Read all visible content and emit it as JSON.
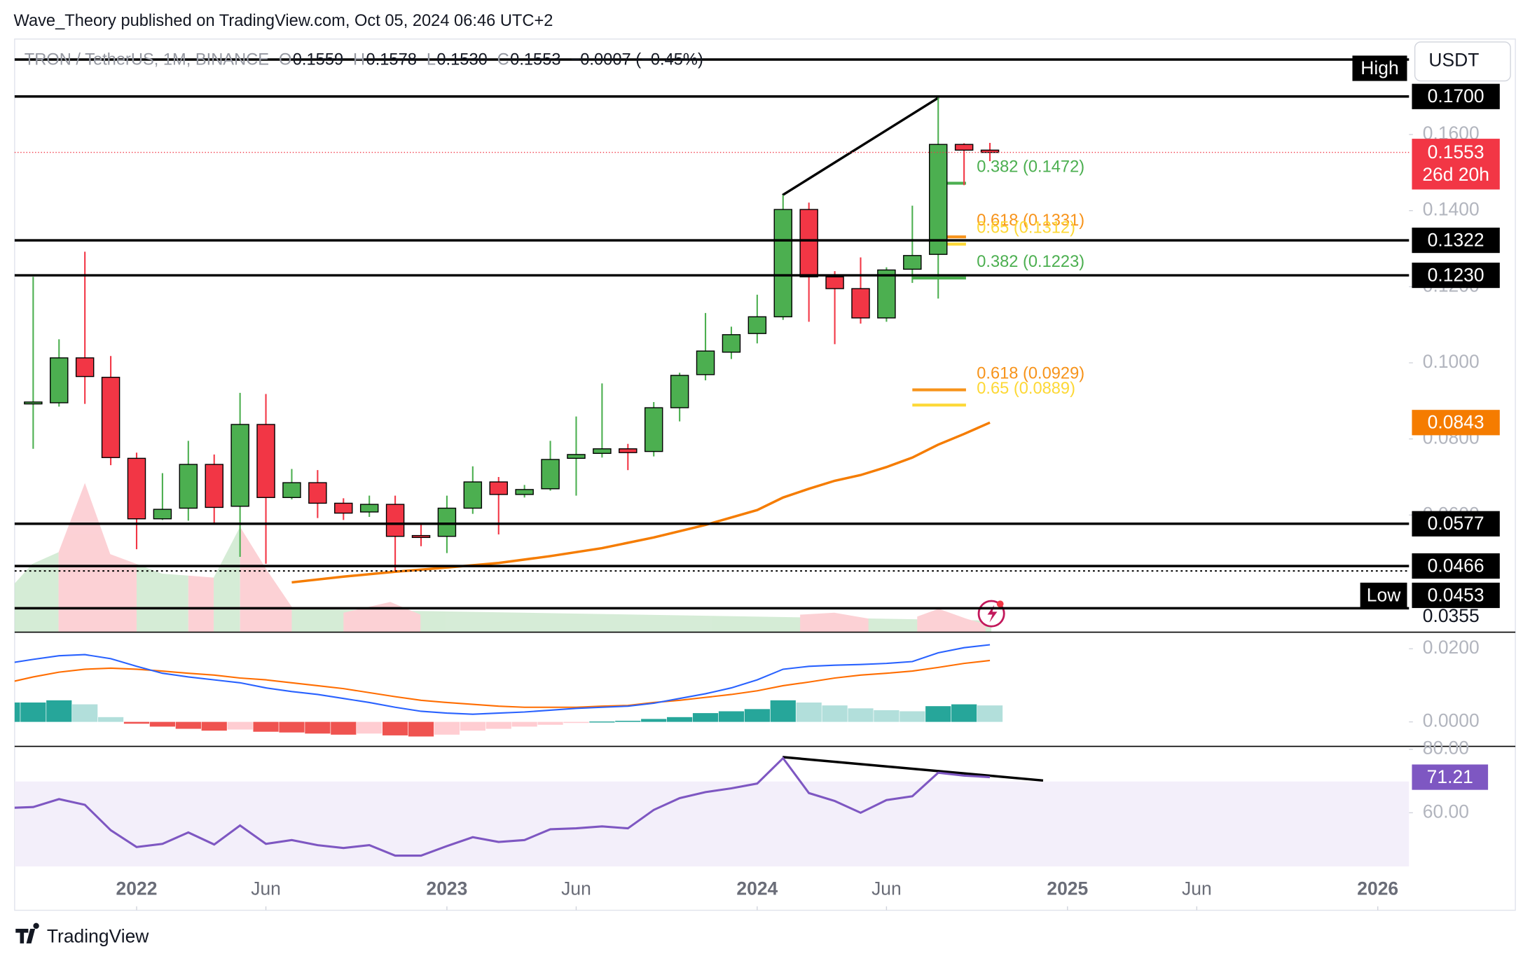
{
  "header": {
    "publisher": "Wave_Theory published on TradingView.com, Oct 05, 2024 06:46 UTC+2"
  },
  "footer": {
    "brand": "TradingView"
  },
  "chart_data": {
    "type": "candlestick",
    "symbol": "TRON / TetherUS, 1M, BINANCE",
    "legend": [
      {
        "key": "O",
        "value": "0.1559"
      },
      {
        "key": "H",
        "value": "0.1578"
      },
      {
        "key": "L",
        "value": "0.1530"
      },
      {
        "key": "C",
        "value": "0.1553"
      }
    ],
    "change": "−0.0007 (−0.45%)",
    "currency": "USDT",
    "up_color": "#4caf50",
    "down_color": "#f23645",
    "xlim": [
      "2021-08",
      "2026-02"
    ],
    "xticks": [
      {
        "value": "2022-01",
        "label": "2022"
      },
      {
        "value": "2022-06",
        "label": "Jun"
      },
      {
        "value": "2023-01",
        "label": "2023"
      },
      {
        "value": "2023-06",
        "label": "Jun"
      },
      {
        "value": "2024-01",
        "label": "2024"
      },
      {
        "value": "2024-06",
        "label": "Jun"
      },
      {
        "value": "2025-01",
        "label": "2025"
      },
      {
        "value": "2025-06",
        "label": "Jun"
      },
      {
        "value": "2026-01",
        "label": "2026"
      }
    ],
    "ylim": [
      0.0292,
      0.1851
    ],
    "yticks": [
      {
        "value": 0.16,
        "label": "0.1600"
      },
      {
        "value": 0.14,
        "label": "0.1400"
      },
      {
        "value": 0.12,
        "label": "0.1200"
      },
      {
        "value": 0.1,
        "label": "0.1000"
      },
      {
        "value": 0.08,
        "label": "0.0800"
      },
      {
        "value": 0.06,
        "label": "0.0600"
      }
    ],
    "x": [
      "2021-09",
      "2021-10",
      "2021-11",
      "2021-12",
      "2022-01",
      "2022-02",
      "2022-03",
      "2022-04",
      "2022-05",
      "2022-06",
      "2022-07",
      "2022-08",
      "2022-09",
      "2022-10",
      "2022-11",
      "2022-12",
      "2023-01",
      "2023-02",
      "2023-03",
      "2023-04",
      "2023-05",
      "2023-06",
      "2023-07",
      "2023-08",
      "2023-09",
      "2023-10",
      "2023-11",
      "2023-12",
      "2024-01",
      "2024-02",
      "2024-03",
      "2024-04",
      "2024-05",
      "2024-06",
      "2024-07",
      "2024-08",
      "2024-09",
      "2024-10"
    ],
    "open": [
      0.0892,
      0.0895,
      0.1013,
      0.0962,
      0.0749,
      0.059,
      0.0618,
      0.0733,
      0.0623,
      0.0838,
      0.0646,
      0.0685,
      0.0631,
      0.0608,
      0.0628,
      0.0546,
      0.0544,
      0.0618,
      0.0687,
      0.0654,
      0.0669,
      0.0749,
      0.0762,
      0.0774,
      0.0767,
      0.0882,
      0.0969,
      0.1028,
      0.1077,
      0.1121,
      0.1403,
      0.1226,
      0.1195,
      0.1118,
      0.1246,
      0.1285,
      0.1574,
      0.1559
    ],
    "high": [
      0.1226,
      0.1062,
      0.1292,
      0.1018,
      0.0764,
      0.071,
      0.0795,
      0.0759,
      0.0921,
      0.0918,
      0.0721,
      0.0718,
      0.0644,
      0.0651,
      0.0651,
      0.0579,
      0.0651,
      0.0728,
      0.07,
      0.0679,
      0.0795,
      0.0859,
      0.0946,
      0.0787,
      0.0897,
      0.0974,
      0.1131,
      0.1095,
      0.1179,
      0.1441,
      0.1421,
      0.1241,
      0.1277,
      0.1251,
      0.1413,
      0.17,
      0.1577,
      0.1578
    ],
    "low": [
      0.0774,
      0.0885,
      0.0892,
      0.0731,
      0.051,
      0.0587,
      0.0585,
      0.0574,
      0.049,
      0.0472,
      0.0641,
      0.0592,
      0.0587,
      0.0595,
      0.0453,
      0.0518,
      0.05,
      0.0603,
      0.0549,
      0.0646,
      0.0664,
      0.0651,
      0.0751,
      0.0718,
      0.0754,
      0.0846,
      0.0954,
      0.101,
      0.1051,
      0.1113,
      0.1108,
      0.1049,
      0.1103,
      0.1108,
      0.121,
      0.1169,
      0.1467,
      0.153
    ],
    "close": [
      0.0897,
      0.1013,
      0.0964,
      0.0751,
      0.059,
      0.0615,
      0.0733,
      0.062,
      0.0838,
      0.0646,
      0.0685,
      0.0631,
      0.0605,
      0.0628,
      0.0544,
      0.0541,
      0.0618,
      0.0687,
      0.0654,
      0.0667,
      0.0746,
      0.0759,
      0.0774,
      0.0764,
      0.0882,
      0.0967,
      0.1031,
      0.1074,
      0.1121,
      0.1403,
      0.1226,
      0.1195,
      0.1118,
      0.1244,
      0.1282,
      0.1574,
      0.1559,
      0.1553
    ],
    "levels": [
      {
        "value": 0.17,
        "label": "0.1700"
      },
      {
        "value": 0.1322,
        "label": "0.1322"
      },
      {
        "value": 0.123,
        "label": "0.1230"
      },
      {
        "value": 0.0577,
        "label": "0.0577"
      },
      {
        "value": 0.0466,
        "label": "0.0466"
      }
    ],
    "high_tag": "High",
    "low_level": {
      "value": 0.0453,
      "label": "0.0453",
      "tag": "Low"
    },
    "bottom_level": {
      "value": 0.0355,
      "label": "0.0355"
    },
    "current_price": {
      "value": 0.1553,
      "countdown": "26d 20h"
    },
    "fib_levels": [
      {
        "value": 0.1472,
        "label": "0.382 (0.1472)",
        "color": "#4caf50"
      },
      {
        "value": 0.1331,
        "label": "0.618 (0.1331)",
        "color": "#f7931a"
      },
      {
        "value": 0.1312,
        "label": "0.65 (0.1312)",
        "color": "#fdd835"
      },
      {
        "value": 0.1223,
        "label": "0.382 (0.1223)",
        "color": "#4caf50"
      },
      {
        "value": 0.0929,
        "label": "0.618 (0.0929)",
        "color": "#f7931a"
      },
      {
        "value": 0.0889,
        "label": "0.65 (0.0889)",
        "color": "#fdd835"
      }
    ],
    "ema": {
      "color": "#f57c00",
      "x": [
        "2022-07",
        "2022-09",
        "2022-11",
        "2023-01",
        "2023-03",
        "2023-05",
        "2023-07",
        "2023-09",
        "2023-11",
        "2024-01",
        "2024-02",
        "2024-03",
        "2024-04",
        "2024-05",
        "2024-06",
        "2024-07",
        "2024-08",
        "2024-09",
        "2024-10"
      ],
      "values": [
        0.0423,
        0.0438,
        0.0451,
        0.0462,
        0.0474,
        0.0492,
        0.0513,
        0.0541,
        0.0574,
        0.0613,
        0.0646,
        0.0669,
        0.069,
        0.0705,
        0.0726,
        0.0751,
        0.0785,
        0.0813,
        0.0843
      ]
    },
    "macd": {
      "ylim": [
        -0.0067,
        0.024
      ],
      "yticks": [
        {
          "value": 0.02,
          "label": "0.0200"
        },
        {
          "value": 0,
          "label": "0.0000"
        }
      ],
      "x": [
        "2021-08",
        "2021-09",
        "2021-10",
        "2021-11",
        "2021-12",
        "2022-01",
        "2022-02",
        "2022-03",
        "2022-04",
        "2022-05",
        "2022-06",
        "2022-07",
        "2022-08",
        "2022-09",
        "2022-10",
        "2022-11",
        "2022-12",
        "2023-01",
        "2023-02",
        "2023-03",
        "2023-04",
        "2023-05",
        "2023-06",
        "2023-07",
        "2023-08",
        "2023-09",
        "2023-10",
        "2023-11",
        "2023-12",
        "2024-01",
        "2024-02",
        "2024-03",
        "2024-04",
        "2024-05",
        "2024-06",
        "2024-07",
        "2024-08",
        "2024-09",
        "2024-10"
      ],
      "macd_line": {
        "color": "#2962ff",
        "values": [
          0.016,
          0.0171,
          0.0181,
          0.0184,
          0.0173,
          0.0152,
          0.0133,
          0.0123,
          0.0115,
          0.0107,
          0.0093,
          0.0083,
          0.0075,
          0.0064,
          0.0053,
          0.004,
          0.0029,
          0.0024,
          0.0021,
          0.0024,
          0.0027,
          0.0032,
          0.0037,
          0.004,
          0.0043,
          0.0051,
          0.0064,
          0.0077,
          0.0093,
          0.0115,
          0.0144,
          0.0152,
          0.0155,
          0.0157,
          0.016,
          0.0165,
          0.0189,
          0.0203,
          0.0211
        ]
      },
      "signal_line": {
        "color": "#ff6d00",
        "values": [
          0.0107,
          0.0123,
          0.0136,
          0.0144,
          0.0147,
          0.0144,
          0.0139,
          0.0133,
          0.0128,
          0.012,
          0.0115,
          0.0107,
          0.0099,
          0.0091,
          0.008,
          0.0069,
          0.0059,
          0.0053,
          0.0048,
          0.0043,
          0.004,
          0.004,
          0.004,
          0.0043,
          0.0045,
          0.0053,
          0.0059,
          0.0067,
          0.0075,
          0.0085,
          0.0099,
          0.0109,
          0.012,
          0.0128,
          0.0133,
          0.0139,
          0.0149,
          0.016,
          0.0168
        ]
      },
      "histogram": {
        "colors": {
          "up_rising": "#26a69a",
          "up_falling": "#b2dfdb",
          "down_falling": "#ef5350",
          "down_rising": "#ffcdd2"
        },
        "values": [
          0.0053,
          0.0053,
          0.0059,
          0.0048,
          0.0013,
          -0.0005,
          -0.0013,
          -0.0019,
          -0.0024,
          -0.0021,
          -0.0027,
          -0.0029,
          -0.0032,
          -0.0035,
          -0.0032,
          -0.0037,
          -0.004,
          -0.0035,
          -0.0024,
          -0.0019,
          -0.0013,
          -0.0008,
          -0.0003,
          0.0001,
          0.0003,
          0.0008,
          0.0013,
          0.0024,
          0.0029,
          0.0035,
          0.0059,
          0.0053,
          0.0045,
          0.0037,
          0.0032,
          0.0029,
          0.0043,
          0.0048,
          0.0045
        ]
      }
    },
    "rsi": {
      "color": "#7e57c2",
      "ylim": [
        42.5,
        80.3
      ],
      "yticks": [
        {
          "value": 80,
          "label": "80.00"
        },
        {
          "value": 60,
          "label": "60.00"
        }
      ],
      "x": [
        "2021-08",
        "2021-09",
        "2021-10",
        "2021-11",
        "2021-12",
        "2022-01",
        "2022-02",
        "2022-03",
        "2022-04",
        "2022-05",
        "2022-06",
        "2022-07",
        "2022-08",
        "2022-09",
        "2022-10",
        "2022-11",
        "2022-12",
        "2023-01",
        "2023-02",
        "2023-03",
        "2023-04",
        "2023-05",
        "2023-06",
        "2023-07",
        "2023-08",
        "2023-09",
        "2023-10",
        "2023-11",
        "2023-12",
        "2024-01",
        "2024-02",
        "2024-03",
        "2024-04",
        "2024-05",
        "2024-06",
        "2024-07",
        "2024-08",
        "2024-09",
        "2024-10"
      ],
      "values": [
        61.5,
        61.8,
        64.3,
        62.5,
        54.5,
        49.2,
        50.2,
        53.8,
        50.0,
        56.0,
        50.2,
        51.4,
        49.8,
        48.9,
        49.8,
        46.5,
        46.5,
        49.5,
        52.3,
        50.8,
        51.4,
        54.8,
        55.1,
        55.7,
        55.1,
        60.9,
        64.6,
        66.5,
        67.7,
        69.2,
        77.2,
        66.2,
        63.7,
        60.0,
        64.0,
        65.2,
        72.6,
        71.7,
        71.21
      ]
    }
  }
}
